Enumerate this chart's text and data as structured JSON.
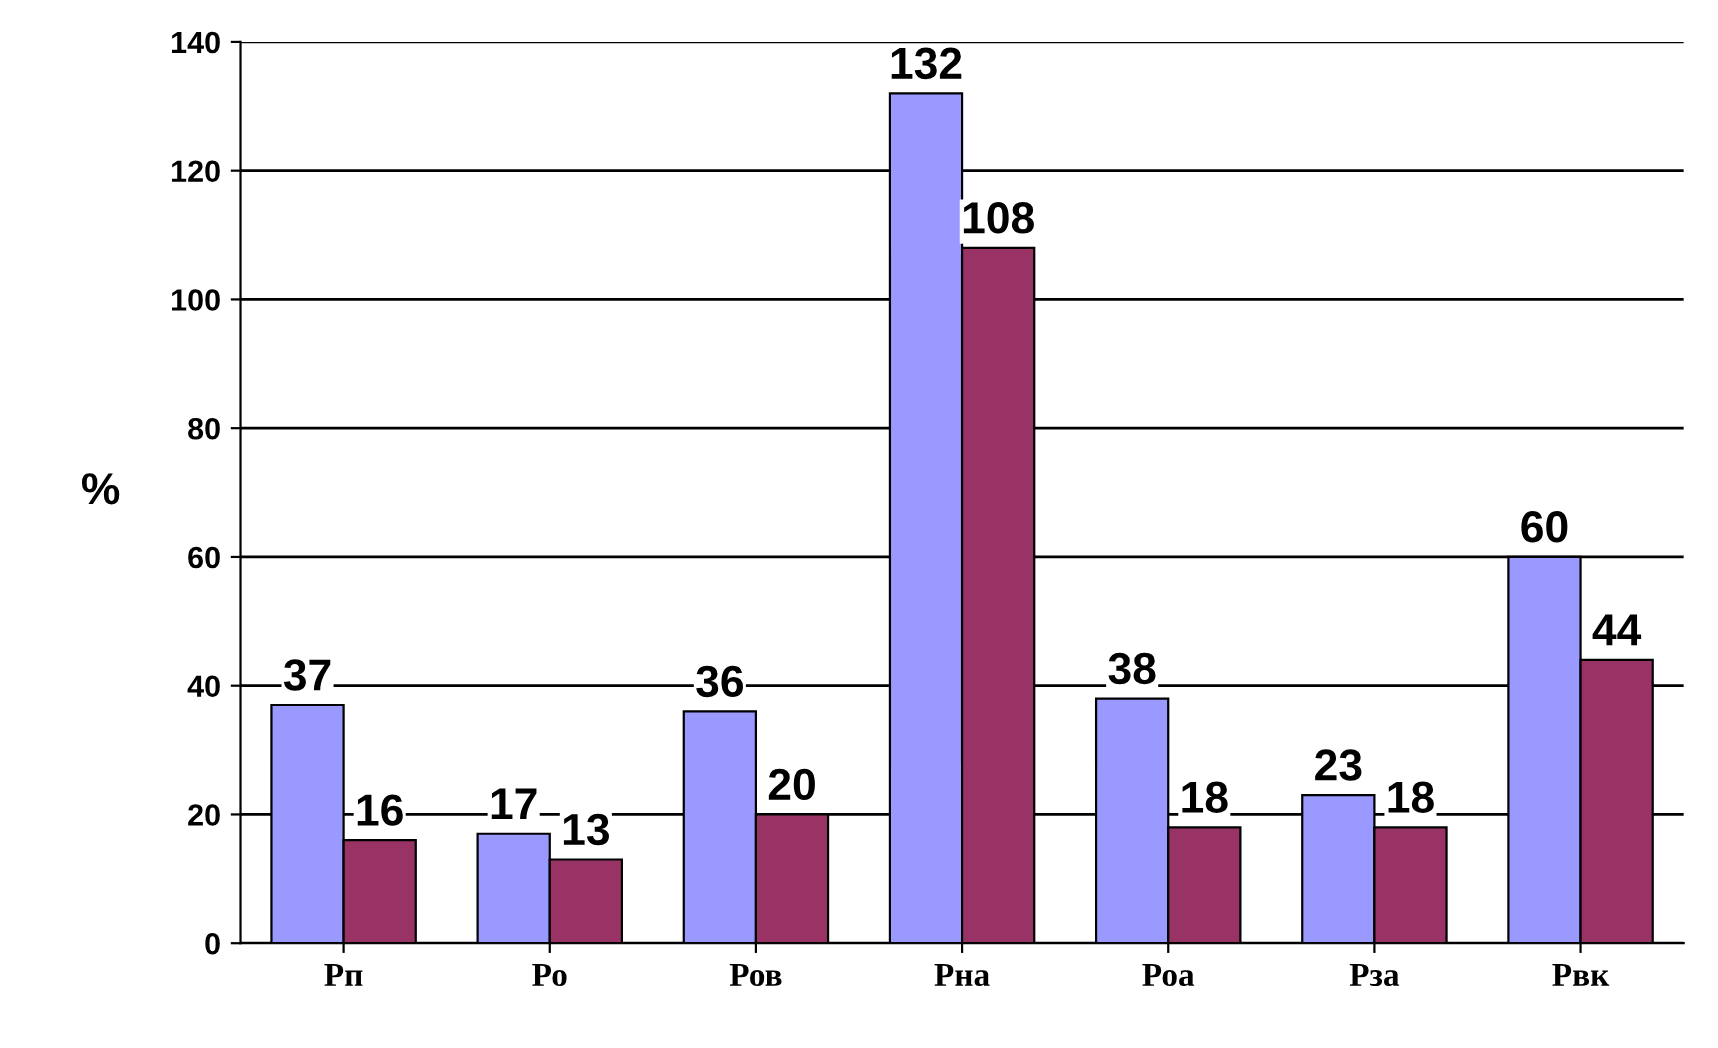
{
  "chart_data": {
    "type": "bar",
    "ylabel": "%",
    "categories": [
      "Рп",
      "Ро",
      "Ров",
      "Рна",
      "Роа",
      "Рза",
      "Рвк"
    ],
    "series": [
      {
        "color": "#9999ff",
        "values": [
          37,
          17,
          36,
          132,
          38,
          23,
          60
        ]
      },
      {
        "color": "#993366",
        "values": [
          16,
          13,
          20,
          108,
          18,
          18,
          44
        ]
      }
    ],
    "ylim": [
      0,
      140
    ],
    "yticks": [
      0,
      20,
      40,
      60,
      80,
      100,
      120,
      140
    ],
    "grid": "y",
    "data_labels": true
  }
}
